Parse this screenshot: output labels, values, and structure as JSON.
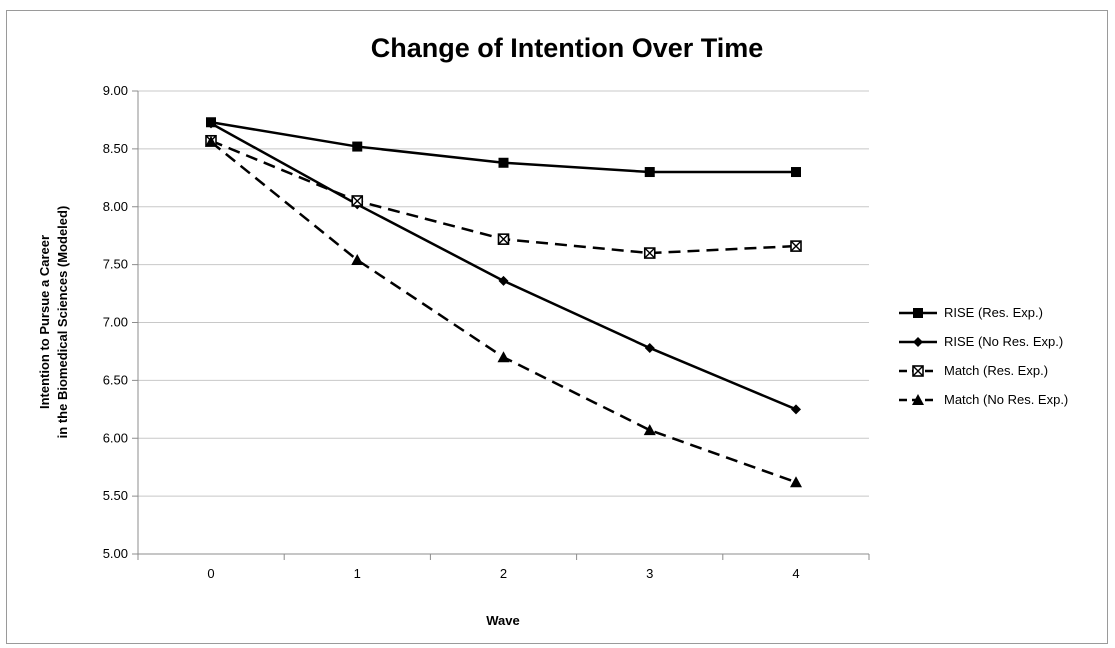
{
  "chart_data": {
    "type": "line",
    "title": "Change of Intention Over Time",
    "xlabel": "Wave",
    "ylabel_lines": [
      "Intention to Pursue a Career",
      "in the Biomedical Sciences (Modeled)"
    ],
    "x": [
      0,
      1,
      2,
      3,
      4
    ],
    "x_tick_labels": [
      "0",
      "1",
      "2",
      "3",
      "4"
    ],
    "ylim": [
      5.0,
      9.0
    ],
    "y_ticks": [
      5.0,
      5.5,
      6.0,
      6.5,
      7.0,
      7.5,
      8.0,
      8.5,
      9.0
    ],
    "y_tick_labels": [
      "5.00",
      "5.50",
      "6.00",
      "6.50",
      "7.00",
      "7.50",
      "8.00",
      "8.50",
      "9.00"
    ],
    "grid": true,
    "legend_position": "right",
    "series": [
      {
        "name": "RISE (Res. Exp.)",
        "values": [
          8.73,
          8.52,
          8.38,
          8.3,
          8.3
        ],
        "marker": "square",
        "dash": "solid",
        "color": "#000000"
      },
      {
        "name": "RISE (No Res. Exp.)",
        "values": [
          8.72,
          8.02,
          7.36,
          6.78,
          6.25
        ],
        "marker": "diamond",
        "dash": "solid",
        "color": "#000000"
      },
      {
        "name": "Match (Res. Exp.)",
        "values": [
          8.57,
          8.05,
          7.72,
          7.6,
          7.66
        ],
        "marker": "square-x",
        "dash": "dashed",
        "color": "#000000"
      },
      {
        "name": "Match (No Res. Exp.)",
        "values": [
          8.56,
          7.54,
          6.7,
          6.07,
          5.62
        ],
        "marker": "triangle",
        "dash": "dashed",
        "color": "#000000"
      }
    ]
  }
}
